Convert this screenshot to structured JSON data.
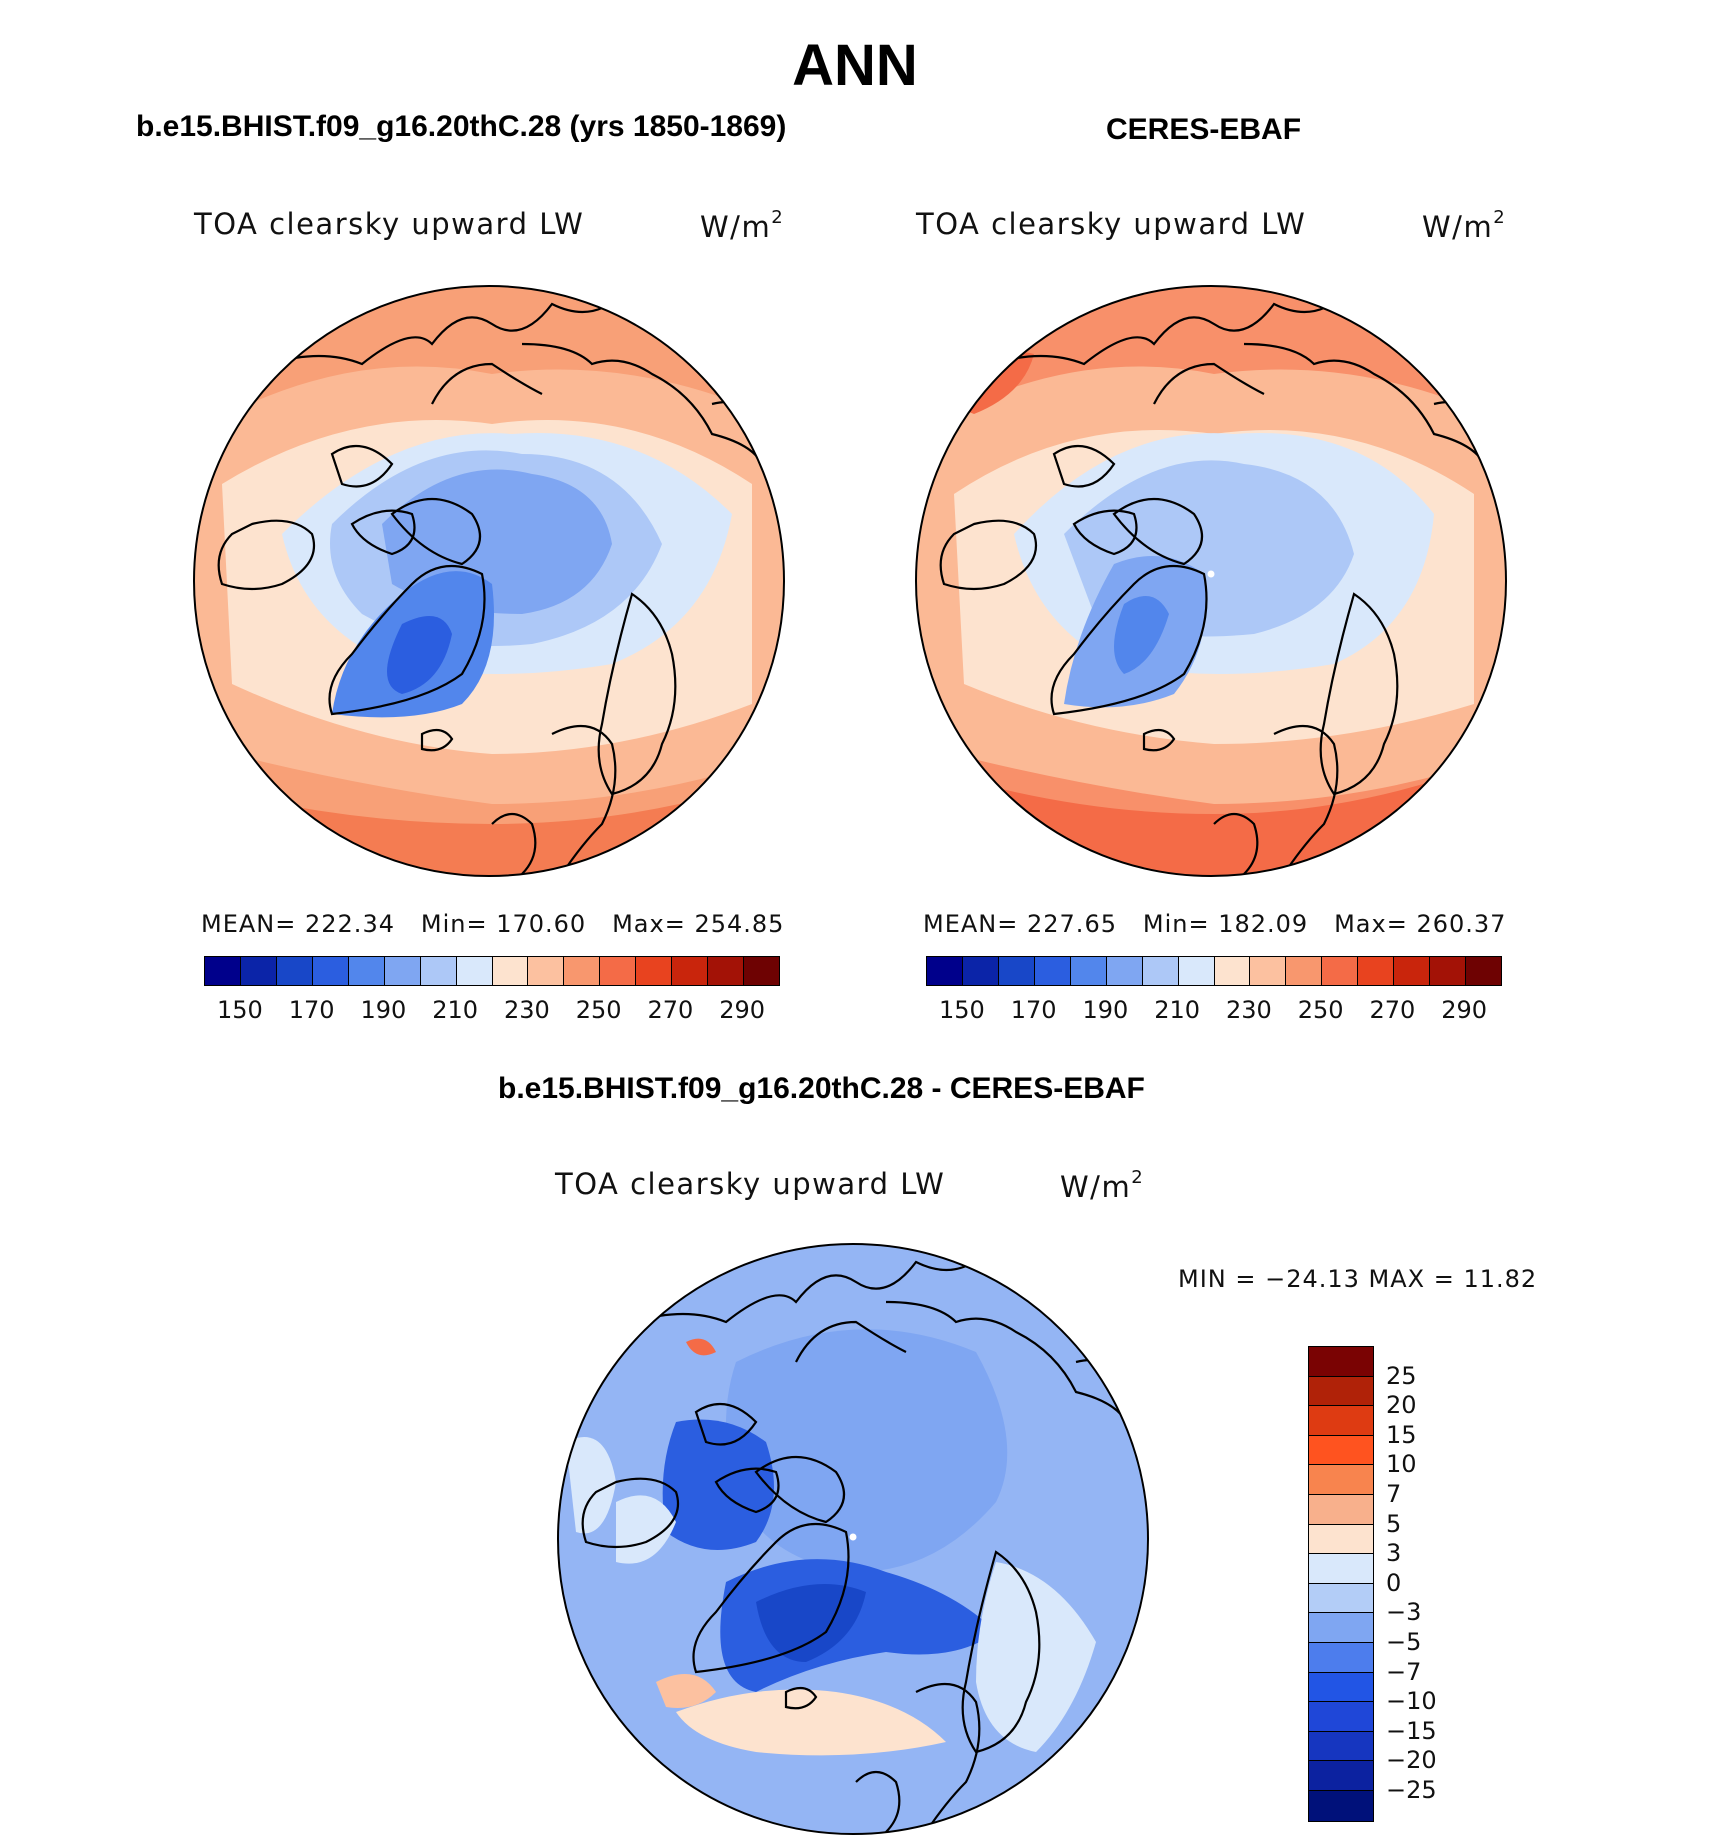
{
  "title": "ANN",
  "panels": {
    "model": {
      "case_title": "b.e15.BHIST.f09_g16.20thC.28 (yrs 1850-1869)",
      "variable": "TOA clearsky upward LW",
      "units_base": "W/m",
      "units_exp": "2",
      "mean_label": "MEAN=",
      "mean_value": "222.34",
      "min_label": "Min=",
      "min_value": "170.60",
      "max_label": "Max=",
      "max_value": "254.85"
    },
    "obs": {
      "case_title": "CERES-EBAF",
      "variable": "TOA clearsky upward LW",
      "units_base": "W/m",
      "units_exp": "2",
      "mean_label": "MEAN=",
      "mean_value": "227.65",
      "min_label": "Min=",
      "min_value": "182.09",
      "max_label": "Max=",
      "max_value": "260.37"
    },
    "diff": {
      "case_title": "b.e15.BHIST.f09_g16.20thC.28 - CERES-EBAF",
      "variable": "TOA clearsky upward LW",
      "units_base": "W/m",
      "units_exp": "2",
      "minmax_text": "MIN = −24.13 MAX =   11.82"
    }
  },
  "abs_colorbar": {
    "colors": [
      "#00008b",
      "#0b24a8",
      "#1847c8",
      "#2b5ee0",
      "#5286ec",
      "#7fa6f2",
      "#adc8f7",
      "#d9e8fb",
      "#fde3cf",
      "#fcc1a0",
      "#f8976e",
      "#f46b47",
      "#e8431f",
      "#c9250c",
      "#a31206",
      "#6e0202"
    ],
    "tick_labels": [
      "150",
      "170",
      "190",
      "210",
      "230",
      "250",
      "270",
      "290"
    ]
  },
  "diff_colorbar": {
    "colors": [
      "#7a0303",
      "#b02208",
      "#de3b12",
      "#ff531f",
      "#f8844e",
      "#f8b08c",
      "#fde3cf",
      "#d9e8fb",
      "#b3cdf7",
      "#7fa6f2",
      "#4d7ded",
      "#2255e5",
      "#1f47d8",
      "#1636c0",
      "#0c22a0",
      "#00117a"
    ],
    "tick_labels": [
      "25",
      "20",
      "15",
      "10",
      "7",
      "5",
      "3",
      "0",
      "−3",
      "−5",
      "−7",
      "−10",
      "−15",
      "−20",
      "−25"
    ]
  },
  "chart_data": [
    {
      "type": "heatmap",
      "projection": "north polar stereographic",
      "title": "b.e15.BHIST.f09_g16.20thC.28 (yrs 1850-1869)",
      "variable": "TOA clearsky upward LW",
      "units": "W/m2",
      "mean": 222.34,
      "min": 170.6,
      "max": 254.85,
      "contour_levels": [
        150,
        160,
        170,
        180,
        190,
        200,
        210,
        220,
        230,
        240,
        250,
        260,
        270,
        280,
        290
      ]
    },
    {
      "type": "heatmap",
      "projection": "north polar stereographic",
      "title": "CERES-EBAF",
      "variable": "TOA clearsky upward LW",
      "units": "W/m2",
      "mean": 227.65,
      "min": 182.09,
      "max": 260.37,
      "contour_levels": [
        150,
        160,
        170,
        180,
        190,
        200,
        210,
        220,
        230,
        240,
        250,
        260,
        270,
        280,
        290
      ]
    },
    {
      "type": "heatmap",
      "projection": "north polar stereographic",
      "title": "b.e15.BHIST.f09_g16.20thC.28 - CERES-EBAF",
      "variable": "TOA clearsky upward LW",
      "units": "W/m2",
      "min": -24.13,
      "max": 11.82,
      "contour_levels": [
        -25,
        -20,
        -15,
        -10,
        -7,
        -5,
        -3,
        0,
        3,
        5,
        7,
        10,
        15,
        20,
        25
      ]
    }
  ]
}
